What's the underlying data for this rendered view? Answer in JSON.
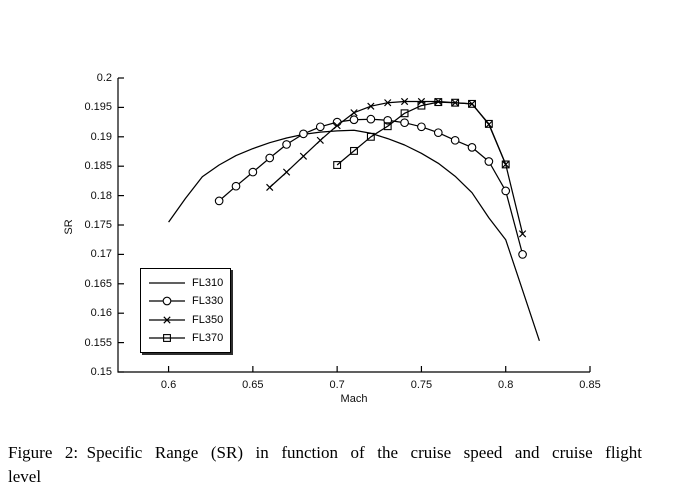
{
  "figure_caption": {
    "lines": [
      "Figure 2: Specific Range (SR) in function of the cruise speed and cruise flight",
      "level"
    ]
  },
  "chart_data": {
    "type": "line",
    "title": "",
    "xlabel": "Mach",
    "ylabel": "SR",
    "xlim": [
      0.57,
      0.85
    ],
    "ylim": [
      0.15,
      0.2
    ],
    "xticks": [
      0.6,
      0.65,
      0.7,
      0.75,
      0.8,
      0.85
    ],
    "xtick_labels": [
      "0.6",
      "0.65",
      "0.7",
      "0.75",
      "0.8",
      "0.85"
    ],
    "yticks": [
      0.15,
      0.155,
      0.16,
      0.165,
      0.17,
      0.175,
      0.18,
      0.185,
      0.19,
      0.195,
      0.2
    ],
    "ytick_labels": [
      "0.15",
      "0.155",
      "0.16",
      "0.165",
      "0.17",
      "0.175",
      "0.18",
      "0.185",
      "0.19",
      "0.195",
      "0.2"
    ],
    "grid": false,
    "legend_position": "lower-left",
    "line_color": "#000000",
    "series": [
      {
        "name": "FL310",
        "marker": "none",
        "points": [
          [
            0.6,
            0.1755
          ],
          [
            0.61,
            0.1795
          ],
          [
            0.62,
            0.1832
          ],
          [
            0.63,
            0.1852
          ],
          [
            0.64,
            0.1868
          ],
          [
            0.65,
            0.188
          ],
          [
            0.66,
            0.189
          ],
          [
            0.67,
            0.1898
          ],
          [
            0.68,
            0.1904
          ],
          [
            0.69,
            0.1908
          ],
          [
            0.7,
            0.191
          ],
          [
            0.71,
            0.1911
          ],
          [
            0.72,
            0.1906
          ],
          [
            0.73,
            0.1897
          ],
          [
            0.74,
            0.1886
          ],
          [
            0.75,
            0.1872
          ],
          [
            0.76,
            0.1855
          ],
          [
            0.77,
            0.1833
          ],
          [
            0.78,
            0.1805
          ],
          [
            0.79,
            0.1762
          ],
          [
            0.8,
            0.1725
          ],
          [
            0.81,
            0.1639
          ],
          [
            0.82,
            0.1553
          ]
        ]
      },
      {
        "name": "FL330",
        "marker": "circle",
        "points": [
          [
            0.63,
            0.1791
          ],
          [
            0.64,
            0.1816
          ],
          [
            0.65,
            0.184
          ],
          [
            0.66,
            0.1864
          ],
          [
            0.67,
            0.1887
          ],
          [
            0.68,
            0.1905
          ],
          [
            0.69,
            0.1917
          ],
          [
            0.7,
            0.1925
          ],
          [
            0.71,
            0.1929
          ],
          [
            0.72,
            0.193
          ],
          [
            0.73,
            0.1928
          ],
          [
            0.74,
            0.1924
          ],
          [
            0.75,
            0.1917
          ],
          [
            0.76,
            0.1907
          ],
          [
            0.77,
            0.1894
          ],
          [
            0.78,
            0.1882
          ],
          [
            0.79,
            0.1858
          ],
          [
            0.8,
            0.1808
          ],
          [
            0.81,
            0.17
          ]
        ]
      },
      {
        "name": "FL350",
        "marker": "x",
        "points": [
          [
            0.66,
            0.1814
          ],
          [
            0.67,
            0.184
          ],
          [
            0.68,
            0.1867
          ],
          [
            0.69,
            0.1894
          ],
          [
            0.7,
            0.1919
          ],
          [
            0.71,
            0.1941
          ],
          [
            0.72,
            0.1952
          ],
          [
            0.73,
            0.1958
          ],
          [
            0.74,
            0.196
          ],
          [
            0.75,
            0.196
          ],
          [
            0.76,
            0.196
          ],
          [
            0.77,
            0.1958
          ],
          [
            0.78,
            0.1956
          ],
          [
            0.79,
            0.1921
          ],
          [
            0.8,
            0.1853
          ],
          [
            0.81,
            0.1735
          ]
        ]
      },
      {
        "name": "FL370",
        "marker": "square",
        "points": [
          [
            0.7,
            0.1852
          ],
          [
            0.71,
            0.1876
          ],
          [
            0.72,
            0.19
          ],
          [
            0.73,
            0.1918
          ],
          [
            0.74,
            0.194
          ],
          [
            0.75,
            0.1953
          ],
          [
            0.76,
            0.1959
          ],
          [
            0.77,
            0.1958
          ],
          [
            0.78,
            0.1956
          ],
          [
            0.79,
            0.1922
          ],
          [
            0.8,
            0.1853
          ]
        ]
      }
    ]
  }
}
